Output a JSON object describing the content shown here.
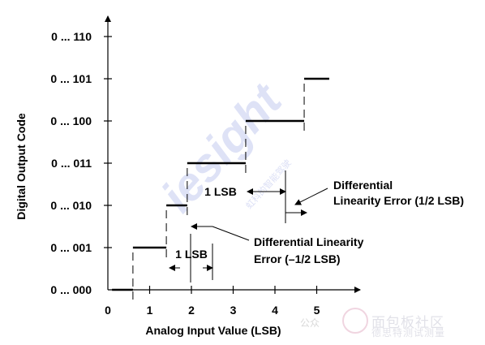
{
  "chart_data": {
    "type": "line",
    "title": "",
    "xlabel": "Analog Input Value (LSB)",
    "ylabel": "Digital Output Code",
    "x_ticks": [
      0,
      1,
      2,
      3,
      4,
      5
    ],
    "x_tick_labels": [
      "0",
      "1",
      "2",
      "3",
      "4",
      "5"
    ],
    "y_codes": [
      "0 ... 000",
      "0 ... 001",
      "0 ... 010",
      "0 ... 011",
      "0 ... 100",
      "0 ... 101",
      "0 ... 110"
    ],
    "xlim": [
      0,
      5.5
    ],
    "ylim": [
      0,
      6
    ],
    "grid": false,
    "series": [
      {
        "steps": [
          {
            "x_start": 0.1,
            "x_end": 0.6,
            "code": 0
          },
          {
            "x_start": 0.6,
            "x_end": 1.4,
            "code": 1
          },
          {
            "x_start": 1.4,
            "x_end": 1.9,
            "code": 2
          },
          {
            "x_start": 1.9,
            "x_end": 3.3,
            "code": 3
          },
          {
            "x_start": 3.3,
            "x_end": 4.7,
            "code": 4
          },
          {
            "x_start": 4.7,
            "x_end": 5.3,
            "code": 5
          }
        ]
      }
    ],
    "annotations": [
      {
        "label": "1 LSB",
        "x_from": 1.4,
        "x_to": 2.5,
        "code_level": 0.5
      },
      {
        "label": "1 LSB",
        "x_from": 3.3,
        "x_to": 4.3,
        "code_level": 2.95
      },
      {
        "label": "Differential Linearity Error (1/2 LSB)",
        "lines": [
          "Differential",
          "Linearity Error (1/2 LSB)"
        ]
      },
      {
        "label": "Differential Linearity Error (–1/2 LSB)",
        "lines": [
          "Differential Linearity",
          "Error (–1/2 LSB)"
        ]
      }
    ]
  },
  "watermark": {
    "logo_text": "iesight",
    "logo_sub": "虹科的智能驾驶",
    "account_prefix": "公众",
    "brand_text": "面包板社区",
    "brand_sub": "德思特测试测量"
  }
}
